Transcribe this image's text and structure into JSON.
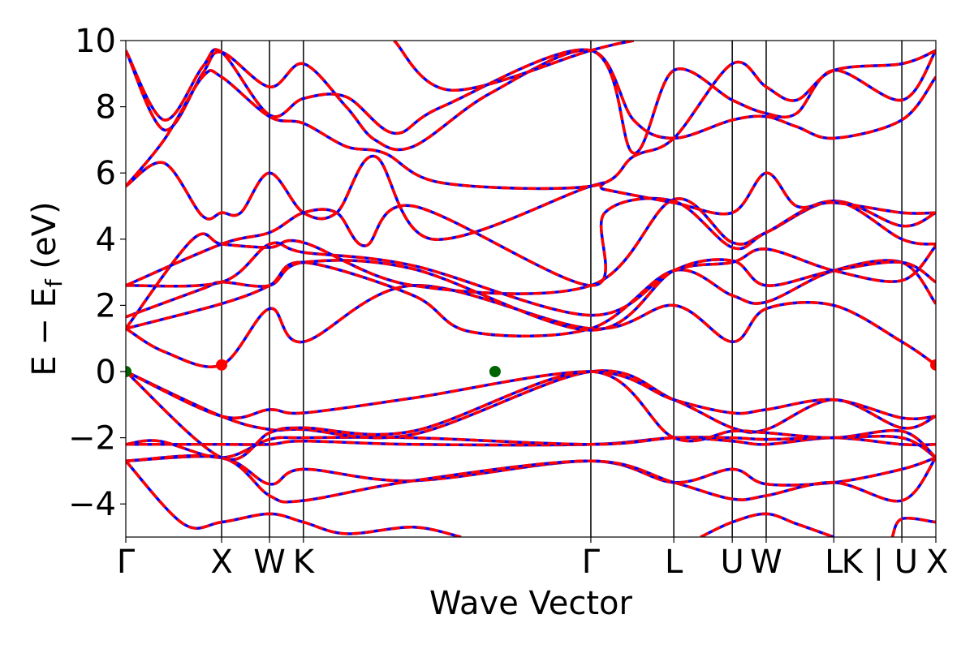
{
  "chart_data": {
    "type": "line",
    "title": "",
    "xlabel": "Wave Vector",
    "ylabel": "E − E_f (eV)",
    "ylabel_parts": {
      "main": "E − E",
      "sub": "f",
      "units": " (eV)"
    },
    "ylim": [
      -5,
      10
    ],
    "yticks": [
      -4,
      -2,
      0,
      2,
      4,
      6,
      8,
      10
    ],
    "ytick_labels": [
      "−4",
      "−2",
      "0",
      "2",
      "4",
      "6",
      "8",
      "10"
    ],
    "kpath": {
      "distances": [
        0.0,
        1.0,
        1.5,
        1.854,
        4.854,
        5.72,
        6.33,
        6.684,
        7.39,
        8.1,
        8.455
      ],
      "labels": [
        "Γ",
        "X",
        "W",
        "K",
        "Γ",
        "L",
        "U",
        "W",
        "L",
        "K | U",
        "X"
      ]
    },
    "colors": {
      "solid_bands": "#0000ff",
      "dashed_bands": "#ff0000",
      "vbm_marker": "#006400",
      "cbm_marker": "#ff0000",
      "vlines": "#000000"
    },
    "markers": [
      {
        "role": "VBM",
        "k": 0.0,
        "E": 0.0
      },
      {
        "role": "VBM",
        "k": 3.854,
        "E": 0.0
      },
      {
        "role": "CBM",
        "k": 1.0,
        "E": 0.2
      },
      {
        "role": "CBM",
        "k": 8.455,
        "E": 0.2
      }
    ],
    "series": [
      {
        "values": [
          [
            0.0,
            -2.7
          ],
          [
            1.0,
            -2.6
          ],
          [
            1.5,
            -3.4
          ],
          [
            1.854,
            -2.95
          ],
          [
            3.0,
            -3.3
          ],
          [
            4.854,
            -2.7
          ],
          [
            5.72,
            -3.35
          ],
          [
            6.33,
            -2.95
          ],
          [
            6.684,
            -3.4
          ],
          [
            7.39,
            -3.35
          ],
          [
            8.1,
            -2.95
          ],
          [
            8.455,
            -2.6
          ]
        ]
      },
      {
        "values": [
          [
            0.0,
            -2.7
          ],
          [
            0.6,
            -4.6
          ],
          [
            1.0,
            -4.55
          ],
          [
            1.5,
            -4.3
          ],
          [
            1.854,
            -4.55
          ],
          [
            2.3,
            -4.9
          ],
          [
            3.0,
            -4.7
          ],
          [
            3.5,
            -5.0
          ]
        ]
      },
      {
        "values": [
          [
            6.0,
            -5.0
          ],
          [
            6.33,
            -4.55
          ],
          [
            6.684,
            -4.3
          ],
          [
            7.0,
            -4.6
          ],
          [
            7.39,
            -5.0
          ]
        ]
      },
      {
        "values": [
          [
            8.0,
            -5.0
          ],
          [
            8.1,
            -4.45
          ],
          [
            8.455,
            -4.55
          ]
        ]
      },
      {
        "values": [
          [
            0.0,
            -2.7
          ],
          [
            1.0,
            -2.6
          ],
          [
            1.5,
            -3.75
          ],
          [
            1.854,
            -3.9
          ],
          [
            3.0,
            -3.3
          ],
          [
            4.854,
            -2.7
          ],
          [
            5.72,
            -3.35
          ],
          [
            6.33,
            -3.85
          ],
          [
            6.684,
            -3.75
          ],
          [
            7.39,
            -3.35
          ],
          [
            8.1,
            -3.9
          ],
          [
            8.455,
            -2.6
          ]
        ]
      },
      {
        "values": [
          [
            0.0,
            -2.2
          ],
          [
            1.0,
            -2.2
          ],
          [
            1.5,
            -2.2
          ],
          [
            1.854,
            -2.1
          ],
          [
            3.0,
            -2.2
          ],
          [
            4.854,
            -2.2
          ],
          [
            5.72,
            -2.0
          ],
          [
            6.33,
            -2.1
          ],
          [
            6.684,
            -2.2
          ],
          [
            7.39,
            -2.0
          ],
          [
            8.1,
            -2.2
          ],
          [
            8.455,
            -2.2
          ]
        ]
      },
      {
        "values": [
          [
            0.0,
            -2.2
          ],
          [
            0.35,
            -2.1
          ],
          [
            1.0,
            -2.6
          ],
          [
            1.5,
            -2.05
          ],
          [
            1.854,
            -2.0
          ],
          [
            3.0,
            -2.0
          ],
          [
            4.854,
            -2.2
          ],
          [
            5.72,
            -2.0
          ],
          [
            6.33,
            -2.0
          ],
          [
            6.684,
            -2.05
          ],
          [
            7.39,
            -2.0
          ],
          [
            8.1,
            -2.0
          ],
          [
            8.455,
            -2.6
          ]
        ]
      },
      {
        "values": [
          [
            0.0,
            0.0
          ],
          [
            1.0,
            -1.35
          ],
          [
            1.5,
            -1.75
          ],
          [
            1.854,
            -1.75
          ],
          [
            3.0,
            -1.9
          ],
          [
            4.854,
            0.0
          ],
          [
            5.72,
            -0.85
          ],
          [
            6.33,
            -1.7
          ],
          [
            6.684,
            -1.75
          ],
          [
            7.39,
            -0.85
          ],
          [
            8.1,
            -1.7
          ],
          [
            8.455,
            -1.35
          ]
        ]
      },
      {
        "values": [
          [
            0.0,
            0.0
          ],
          [
            1.0,
            -1.35
          ],
          [
            1.5,
            -1.15
          ],
          [
            1.854,
            -1.25
          ],
          [
            3.0,
            -0.8
          ],
          [
            4.854,
            0.0
          ],
          [
            5.72,
            -0.85
          ],
          [
            6.33,
            -1.25
          ],
          [
            6.684,
            -1.15
          ],
          [
            7.39,
            -0.85
          ],
          [
            8.1,
            -1.4
          ],
          [
            8.455,
            -1.35
          ]
        ]
      },
      {
        "values": [
          [
            0.0,
            0.0
          ],
          [
            1.0,
            -2.6
          ],
          [
            1.5,
            -1.85
          ],
          [
            1.854,
            -1.7
          ],
          [
            3.0,
            -1.8
          ],
          [
            4.854,
            0.0
          ],
          [
            5.72,
            -2.0
          ],
          [
            6.33,
            -1.8
          ],
          [
            6.684,
            -1.85
          ],
          [
            7.39,
            -2.0
          ],
          [
            8.1,
            -1.8
          ],
          [
            8.455,
            -2.6
          ]
        ]
      },
      {
        "values": [
          [
            0.0,
            1.3
          ],
          [
            0.4,
            0.6
          ],
          [
            1.0,
            0.2
          ],
          [
            1.5,
            1.9
          ],
          [
            1.854,
            0.9
          ],
          [
            3.0,
            2.6
          ],
          [
            4.854,
            1.3
          ],
          [
            5.72,
            2.0
          ],
          [
            6.33,
            0.9
          ],
          [
            6.684,
            1.9
          ],
          [
            7.39,
            2.0
          ],
          [
            8.1,
            0.9
          ],
          [
            8.455,
            0.2
          ]
        ]
      },
      {
        "values": [
          [
            0.0,
            1.3
          ],
          [
            1.0,
            2.05
          ],
          [
            1.5,
            2.6
          ],
          [
            1.854,
            3.3
          ],
          [
            3.0,
            2.3
          ],
          [
            3.6,
            1.2
          ],
          [
            4.854,
            1.3
          ],
          [
            5.72,
            3.05
          ],
          [
            6.33,
            2.3
          ],
          [
            6.684,
            2.1
          ],
          [
            7.39,
            3.05
          ],
          [
            8.1,
            3.3
          ],
          [
            8.455,
            2.05
          ]
        ]
      },
      {
        "values": [
          [
            0.0,
            1.65
          ],
          [
            0.8,
            2.5
          ],
          [
            1.0,
            2.7
          ],
          [
            1.5,
            2.6
          ],
          [
            1.854,
            3.3
          ],
          [
            3.0,
            3.1
          ],
          [
            4.854,
            1.25
          ],
          [
            5.72,
            3.05
          ],
          [
            6.33,
            3.35
          ],
          [
            6.684,
            2.6
          ],
          [
            7.39,
            3.05
          ],
          [
            8.1,
            3.3
          ],
          [
            8.455,
            2.7
          ]
        ]
      },
      {
        "values": [
          [
            0.0,
            2.6
          ],
          [
            1.0,
            2.7
          ],
          [
            1.5,
            3.85
          ],
          [
            1.854,
            3.6
          ],
          [
            3.0,
            3.2
          ],
          [
            4.854,
            1.7
          ],
          [
            5.72,
            3.05
          ],
          [
            6.33,
            3.3
          ],
          [
            6.684,
            3.7
          ],
          [
            7.39,
            3.05
          ],
          [
            8.1,
            2.75
          ],
          [
            8.455,
            3.8
          ]
        ]
      },
      {
        "values": [
          [
            0.0,
            1.3
          ],
          [
            0.7,
            4.0
          ],
          [
            1.0,
            3.85
          ],
          [
            1.5,
            3.75
          ],
          [
            1.854,
            3.9
          ],
          [
            3.0,
            2.6
          ],
          [
            4.854,
            2.6
          ],
          [
            5.72,
            5.2
          ],
          [
            6.33,
            3.9
          ],
          [
            6.684,
            4.2
          ],
          [
            7.39,
            5.15
          ],
          [
            8.1,
            4.4
          ],
          [
            8.455,
            4.8
          ]
        ]
      },
      {
        "values": [
          [
            0.0,
            2.6
          ],
          [
            1.0,
            3.85
          ],
          [
            1.5,
            4.2
          ],
          [
            1.854,
            4.8
          ],
          [
            2.2,
            4.8
          ],
          [
            2.5,
            3.8
          ],
          [
            3.0,
            5.0
          ],
          [
            4.854,
            2.6
          ],
          [
            5.0,
            4.8
          ],
          [
            5.72,
            5.15
          ],
          [
            6.33,
            3.75
          ],
          [
            6.684,
            4.2
          ],
          [
            7.39,
            5.15
          ],
          [
            8.1,
            4.0
          ],
          [
            8.455,
            3.85
          ]
        ]
      },
      {
        "values": [
          [
            0.0,
            5.6
          ],
          [
            0.4,
            6.3
          ],
          [
            0.8,
            4.7
          ],
          [
            1.0,
            4.8
          ],
          [
            1.2,
            4.8
          ],
          [
            1.5,
            6.0
          ],
          [
            1.854,
            4.8
          ],
          [
            2.2,
            4.8
          ],
          [
            2.6,
            6.5
          ],
          [
            3.2,
            4.0
          ],
          [
            4.854,
            5.6
          ],
          [
            5.0,
            5.5
          ],
          [
            5.72,
            5.1
          ],
          [
            6.33,
            4.8
          ],
          [
            6.684,
            6.0
          ],
          [
            7.0,
            5.0
          ],
          [
            7.39,
            5.1
          ],
          [
            8.1,
            4.8
          ],
          [
            8.455,
            4.8
          ]
        ]
      },
      {
        "values": [
          [
            0.0,
            9.7
          ],
          [
            0.4,
            7.3
          ],
          [
            0.8,
            9.0
          ],
          [
            1.0,
            9.65
          ],
          [
            1.5,
            8.6
          ],
          [
            1.854,
            9.3
          ],
          [
            2.3,
            8.0
          ],
          [
            2.6,
            7.0
          ],
          [
            3.0,
            6.8
          ],
          [
            3.8,
            8.4
          ],
          [
            4.854,
            9.7
          ],
          [
            5.3,
            7.6
          ],
          [
            5.72,
            7.05
          ],
          [
            6.33,
            7.6
          ],
          [
            6.684,
            7.7
          ],
          [
            7.0,
            7.4
          ],
          [
            7.39,
            7.05
          ],
          [
            8.1,
            7.6
          ],
          [
            8.455,
            8.9
          ]
        ]
      },
      {
        "values": [
          [
            0.0,
            9.7
          ],
          [
            0.4,
            7.6
          ],
          [
            0.8,
            9.2
          ],
          [
            1.0,
            9.65
          ],
          [
            1.5,
            7.75
          ],
          [
            1.854,
            8.25
          ],
          [
            2.3,
            8.3
          ],
          [
            2.8,
            7.2
          ],
          [
            3.3,
            8.0
          ],
          [
            4.854,
            9.7
          ],
          [
            5.3,
            6.6
          ],
          [
            5.72,
            9.1
          ],
          [
            6.33,
            8.2
          ],
          [
            6.684,
            7.8
          ],
          [
            7.0,
            7.8
          ],
          [
            7.39,
            9.1
          ],
          [
            8.1,
            8.2
          ],
          [
            8.455,
            9.7
          ]
        ]
      },
      {
        "values": [
          [
            0.0,
            5.6
          ],
          [
            0.4,
            7.0
          ],
          [
            0.8,
            8.9
          ],
          [
            1.0,
            8.9
          ],
          [
            1.5,
            7.7
          ],
          [
            1.854,
            7.5
          ],
          [
            2.3,
            6.8
          ],
          [
            2.7,
            6.6
          ],
          [
            3.3,
            5.7
          ],
          [
            4.854,
            5.6
          ],
          [
            5.3,
            6.5
          ],
          [
            5.72,
            7.05
          ],
          [
            6.33,
            9.3
          ],
          [
            6.684,
            8.6
          ],
          [
            7.0,
            8.2
          ],
          [
            7.39,
            9.1
          ],
          [
            8.1,
            9.3
          ],
          [
            8.455,
            9.7
          ]
        ]
      },
      {
        "values": [
          [
            2.8,
            10.0
          ],
          [
            3.4,
            8.5
          ],
          [
            4.854,
            9.7
          ],
          [
            5.3,
            10.0
          ]
        ]
      }
    ]
  }
}
